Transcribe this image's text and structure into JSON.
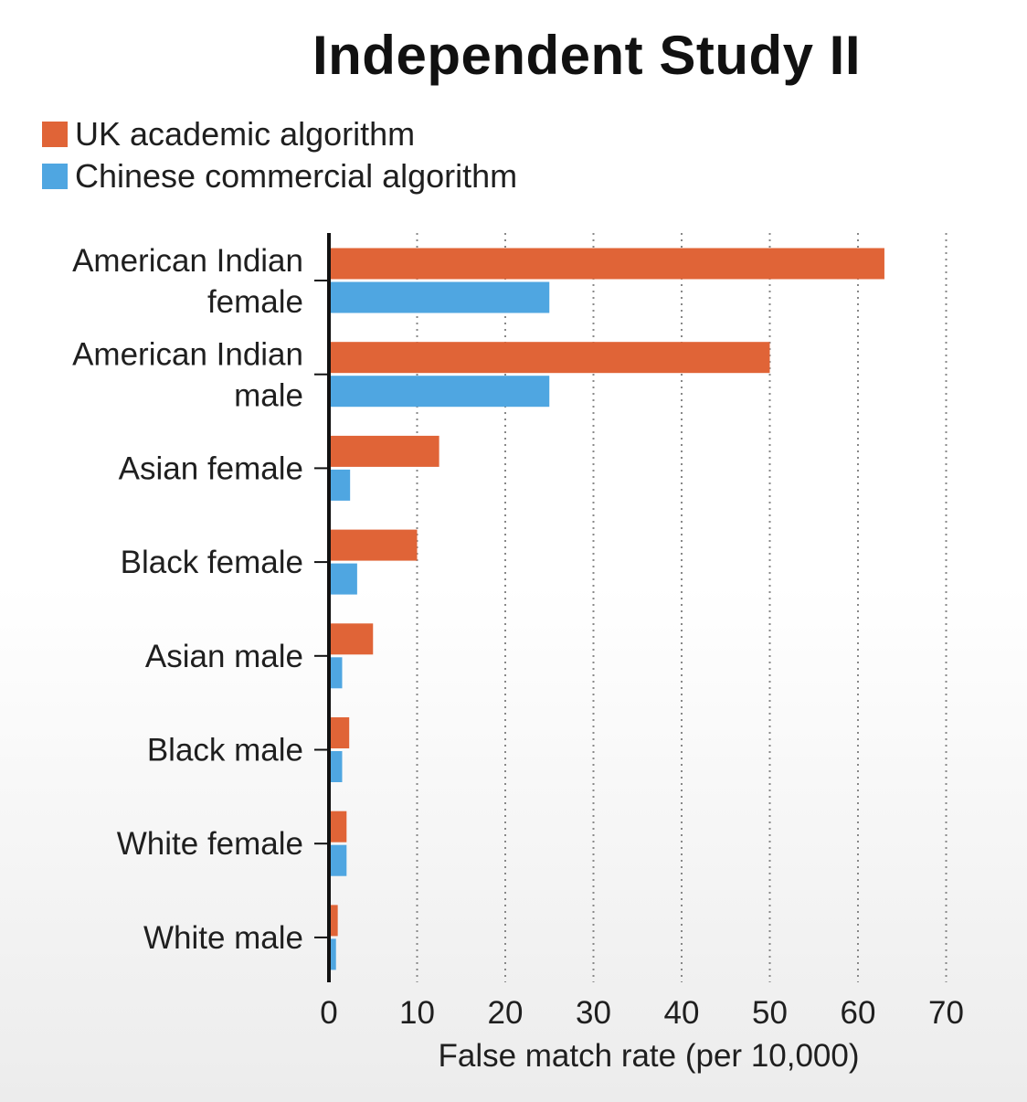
{
  "title": "Independent Study II",
  "colors": {
    "uk": "#e06437",
    "chinese": "#4fa6e1",
    "axis": "#111111",
    "grid": "#888888"
  },
  "chart_data": {
    "type": "bar",
    "orientation": "horizontal",
    "title": "Independent Study II",
    "xlabel": "False match rate (per 10,000)",
    "ylabel": "",
    "xlim": [
      0,
      70
    ],
    "xticks": [
      0,
      10,
      20,
      30,
      40,
      50,
      60,
      70
    ],
    "grid": "vertical dotted",
    "legend_position": "top-left",
    "categories": [
      [
        "American Indian",
        "female"
      ],
      [
        "American Indian",
        "male"
      ],
      [
        "Asian female"
      ],
      [
        "Black female"
      ],
      [
        "Asian male"
      ],
      [
        "Black male"
      ],
      [
        "White female"
      ],
      [
        "White male"
      ]
    ],
    "series": [
      {
        "name": "UK academic algorithm",
        "color": "#e06437",
        "values": [
          63,
          50,
          12.5,
          10,
          5,
          2.3,
          2,
          1
        ]
      },
      {
        "name": "Chinese commercial algorithm",
        "color": "#4fa6e1",
        "values": [
          25,
          25,
          2.4,
          3.2,
          1.5,
          1.5,
          2,
          0.8
        ]
      }
    ]
  }
}
